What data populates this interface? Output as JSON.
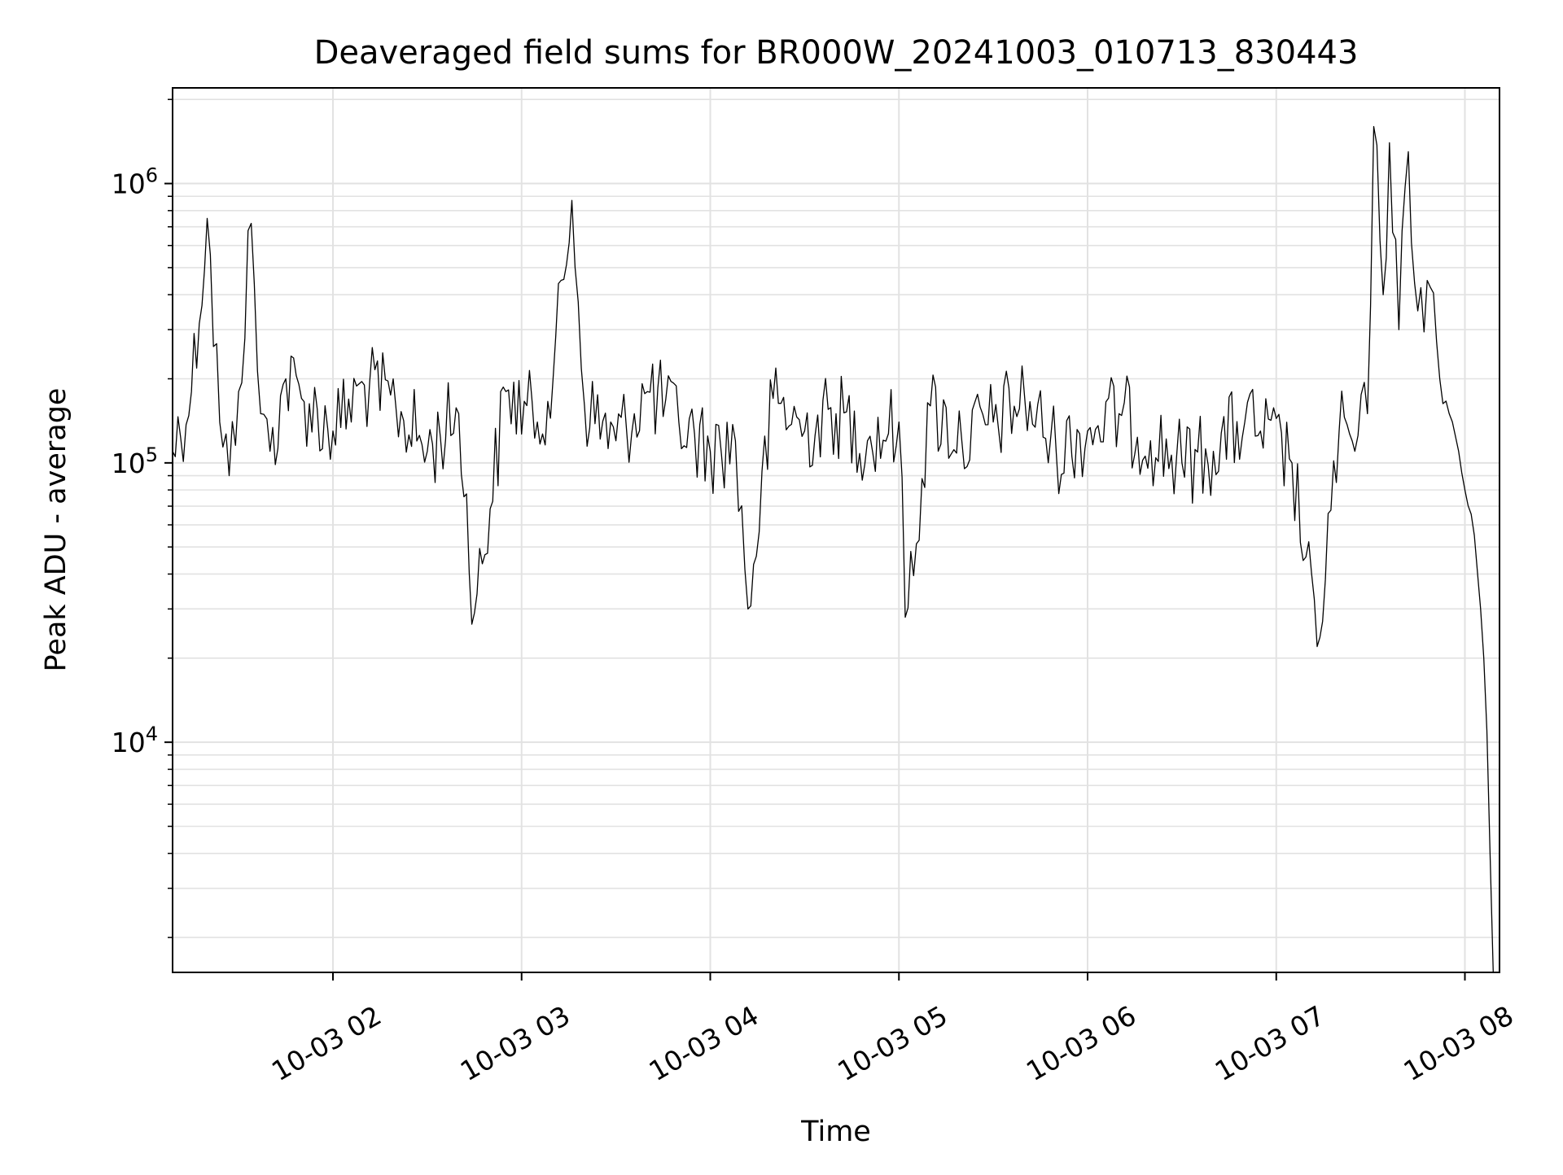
{
  "chart_data": {
    "type": "line",
    "title": "Deaveraged field sums for BR000W_20241003_010713_830443",
    "xlabel": "Time",
    "ylabel": "Peak ADU - average",
    "yscale": "log",
    "ylim": [
      1500,
      2200000
    ],
    "xlim": [
      "10-03 01:09",
      "10-03 08:11"
    ],
    "x_ticks": [
      "10-03 02",
      "10-03 03",
      "10-03 04",
      "10-03 05",
      "10-03 06",
      "10-03 07",
      "10-03 08"
    ],
    "y_ticks": [
      10000,
      100000,
      1000000
    ],
    "y_tick_labels": [
      {
        "base": "10",
        "exp": "4"
      },
      {
        "base": "10",
        "exp": "5"
      },
      {
        "base": "10",
        "exp": "6"
      }
    ],
    "grid": "both, including minor y",
    "line_color": "#000000",
    "series": [
      {
        "x": [
          "10-03 01:09",
          "10-03 01:15",
          "10-03 01:20",
          "10-03 01:24",
          "10-03 01:27",
          "10-03 01:30",
          "10-03 01:34",
          "10-03 01:37",
          "10-03 01:40",
          "10-03 01:45",
          "10-03 01:50",
          "10-03 02:00",
          "10-03 02:10",
          "10-03 02:20",
          "10-03 02:30",
          "10-03 02:40",
          "10-03 02:45",
          "10-03 02:55",
          "10-03 03:05",
          "10-03 03:10",
          "10-03 03:16",
          "10-03 03:20",
          "10-03 03:30",
          "10-03 03:40",
          "10-03 03:50",
          "10-03 04:00",
          "10-03 04:08",
          "10-03 04:12",
          "10-03 04:20",
          "10-03 04:30",
          "10-03 04:40",
          "10-03 04:50",
          "10-03 05:00",
          "10-03 05:02",
          "10-03 05:10",
          "10-03 05:20",
          "10-03 05:30",
          "10-03 05:40",
          "10-03 05:50",
          "10-03 06:00",
          "10-03 06:10",
          "10-03 06:20",
          "10-03 06:30",
          "10-03 06:40",
          "10-03 06:50",
          "10-03 06:55",
          "10-03 07:05",
          "10-03 07:13",
          "10-03 07:20",
          "10-03 07:25",
          "10-03 07:29",
          "10-03 07:31",
          "10-03 07:34",
          "10-03 07:36",
          "10-03 07:39",
          "10-03 07:42",
          "10-03 07:45",
          "10-03 07:48",
          "10-03 07:52",
          "10-03 07:55",
          "10-03 07:58",
          "10-03 08:00",
          "10-03 08:03",
          "10-03 08:05",
          "10-03 08:06",
          "10-03 08:07",
          "10-03 08:08",
          "10-03 08:09"
        ],
        "y": [
          110000,
          180000,
          750000,
          140000,
          90000,
          180000,
          720000,
          150000,
          110000,
          200000,
          170000,
          130000,
          190000,
          160000,
          110000,
          150000,
          29000,
          180000,
          140000,
          200000,
          870000,
          160000,
          120000,
          180000,
          140000,
          110000,
          120000,
          30000,
          170000,
          130000,
          150000,
          120000,
          140000,
          28000,
          160000,
          120000,
          140000,
          170000,
          110000,
          130000,
          150000,
          120000,
          100000,
          110000,
          140000,
          130000,
          100000,
          22000,
          130000,
          110000,
          150000,
          1600000,
          400000,
          1400000,
          300000,
          1300000,
          350000,
          450000,
          200000,
          150000,
          110000,
          80000,
          55000,
          30000,
          20000,
          11000,
          4000,
          1500
        ]
      }
    ]
  }
}
